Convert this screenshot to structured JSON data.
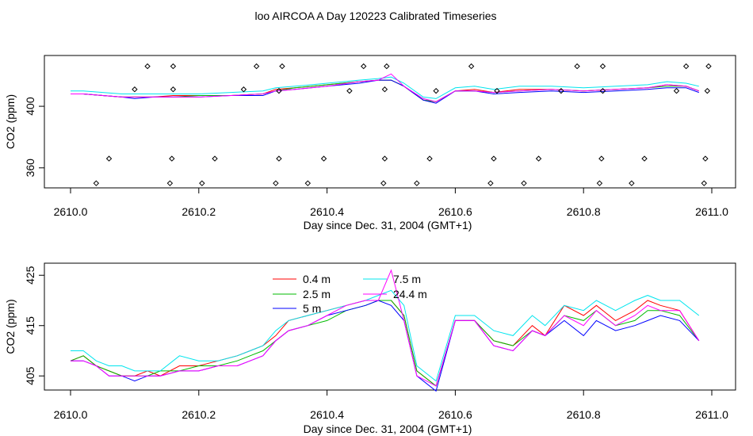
{
  "title": "loo AIRCOA A  Day 120223  Calibrated Timeseries",
  "colors": {
    "0.4 m": "#ff0000",
    "2.5 m": "#00bb00",
    "5 m": "#0000ff",
    "7.5 m": "#00e5ee",
    "24.4 m": "#ff00ff"
  },
  "chart_data": [
    {
      "type": "line",
      "xlabel": "Day since Dec. 31, 2004 (GMT+1)",
      "ylabel": "CO2 (ppm)",
      "xlim": [
        2610.0,
        2611.0
      ],
      "ylim": [
        347,
        433
      ],
      "xticks": [
        2610.0,
        2610.2,
        2610.4,
        2610.6,
        2610.8,
        2611.0
      ],
      "xtick_labels": [
        "2610.0",
        "2610.2",
        "2610.4",
        "2610.6",
        "2610.8",
        "2611.0"
      ],
      "yticks": [
        360,
        400
      ],
      "ytick_labels": [
        "360",
        "400"
      ],
      "legend": "none",
      "series": [
        {
          "key": "7.5 m",
          "x": [
            2610.0,
            2610.02,
            2610.05,
            2610.08,
            2610.1,
            2610.13,
            2610.16,
            2610.2,
            2610.25,
            2610.3,
            2610.32,
            2610.35,
            2610.4,
            2610.45,
            2610.48,
            2610.5,
            2610.52,
            2610.55,
            2610.57,
            2610.6,
            2610.63,
            2610.66,
            2610.7,
            2610.75,
            2610.8,
            2610.85,
            2610.9,
            2610.93,
            2610.96,
            2610.98
          ],
          "y": [
            410,
            410,
            409,
            408,
            408,
            408,
            408,
            408,
            409,
            410,
            412,
            413,
            415,
            417,
            418,
            419,
            415,
            406,
            405,
            412,
            413,
            411,
            413,
            413,
            412,
            413,
            414,
            416,
            415,
            413
          ]
        },
        {
          "key": "0.4 m",
          "x": [
            2610.0,
            2610.02,
            2610.05,
            2610.08,
            2610.1,
            2610.13,
            2610.16,
            2610.2,
            2610.25,
            2610.3,
            2610.32,
            2610.35,
            2610.4,
            2610.45,
            2610.48,
            2610.5,
            2610.52,
            2610.55,
            2610.57,
            2610.6,
            2610.63,
            2610.66,
            2610.7,
            2610.75,
            2610.8,
            2610.85,
            2610.9,
            2610.93,
            2610.96,
            2610.98
          ],
          "y": [
            408,
            408,
            407,
            406,
            406,
            406,
            407,
            407,
            407,
            408,
            411,
            412,
            414,
            416,
            417,
            417,
            413,
            404,
            403,
            410,
            411,
            409,
            411,
            411,
            410,
            411,
            412,
            414,
            413,
            410
          ]
        },
        {
          "key": "2.5 m",
          "x": [
            2610.0,
            2610.02,
            2610.05,
            2610.08,
            2610.1,
            2610.13,
            2610.16,
            2610.2,
            2610.25,
            2610.3,
            2610.32,
            2610.35,
            2610.4,
            2610.45,
            2610.48,
            2610.5,
            2610.52,
            2610.55,
            2610.57,
            2610.6,
            2610.63,
            2610.66,
            2610.7,
            2610.75,
            2610.8,
            2610.85,
            2610.9,
            2610.93,
            2610.96,
            2610.98
          ],
          "y": [
            408,
            408,
            407,
            406,
            406,
            406,
            406,
            407,
            407,
            408,
            410,
            412,
            414,
            416,
            417,
            417,
            413,
            404,
            403,
            410,
            410,
            409,
            410,
            411,
            410,
            411,
            412,
            413,
            413,
            410
          ]
        },
        {
          "key": "5 m",
          "x": [
            2610.0,
            2610.02,
            2610.05,
            2610.08,
            2610.1,
            2610.13,
            2610.16,
            2610.2,
            2610.25,
            2610.3,
            2610.32,
            2610.35,
            2610.4,
            2610.45,
            2610.48,
            2610.5,
            2610.52,
            2610.55,
            2610.57,
            2610.6,
            2610.63,
            2610.66,
            2610.7,
            2610.75,
            2610.8,
            2610.85,
            2610.9,
            2610.93,
            2610.96,
            2610.98
          ],
          "y": [
            408,
            408,
            407,
            406,
            405,
            406,
            406,
            406,
            407,
            407,
            410,
            411,
            413,
            415,
            417,
            417,
            413,
            404,
            402,
            410,
            410,
            408,
            409,
            410,
            409,
            410,
            411,
            412,
            412,
            409
          ]
        },
        {
          "key": "24.4 m",
          "x": [
            2610.0,
            2610.02,
            2610.05,
            2610.08,
            2610.1,
            2610.13,
            2610.16,
            2610.2,
            2610.25,
            2610.3,
            2610.32,
            2610.35,
            2610.4,
            2610.45,
            2610.48,
            2610.5,
            2610.52,
            2610.55,
            2610.57,
            2610.6,
            2610.63,
            2610.66,
            2610.7,
            2610.75,
            2610.8,
            2610.85,
            2610.9,
            2610.93,
            2610.96,
            2610.98
          ],
          "y": [
            408,
            408,
            407,
            406,
            406,
            406,
            406,
            406,
            407,
            408,
            410,
            411,
            413,
            416,
            417,
            421,
            413,
            405,
            403,
            410,
            410,
            409,
            410,
            411,
            410,
            411,
            412,
            414,
            413,
            410
          ]
        }
      ],
      "flag_points": {
        "x": [
          2610.04,
          2610.06,
          2610.1,
          2610.12,
          2610.155,
          2610.158,
          2610.16,
          2610.16,
          2610.205,
          2610.225,
          2610.27,
          2610.29,
          2610.32,
          2610.325,
          2610.325,
          2610.33,
          2610.37,
          2610.395,
          2610.435,
          2610.457,
          2610.488,
          2610.49,
          2610.49,
          2610.493,
          2610.54,
          2610.56,
          2610.57,
          2610.625,
          2610.655,
          2610.66,
          2610.665,
          2610.707,
          2610.73,
          2610.765,
          2610.79,
          2610.825,
          2610.828,
          2610.83,
          2610.83,
          2610.875,
          2610.895,
          2610.945,
          2610.96,
          2610.988,
          2610.99,
          2610.993,
          2610.995
        ],
        "y": [
          350,
          366,
          411,
          426,
          350,
          366,
          411,
          426,
          350,
          366,
          411,
          426,
          350,
          366,
          410,
          426,
          350,
          366,
          410,
          426,
          350,
          366,
          411,
          426,
          350,
          366,
          410,
          426,
          350,
          366,
          410,
          350,
          366,
          410,
          426,
          350,
          366,
          410,
          426,
          350,
          366,
          410,
          426,
          350,
          366,
          410,
          426
        ]
      }
    },
    {
      "type": "line",
      "xlabel": "Day since Dec. 31, 2004 (GMT+1)",
      "ylabel": "CO2 (ppm)",
      "xlim": [
        2610.0,
        2611.0
      ],
      "ylim": [
        402.2,
        427.4
      ],
      "xticks": [
        2610.0,
        2610.2,
        2610.4,
        2610.6,
        2610.8,
        2611.0
      ],
      "xtick_labels": [
        "2610.0",
        "2610.2",
        "2610.4",
        "2610.6",
        "2610.8",
        "2611.0"
      ],
      "yticks": [
        405,
        415,
        425
      ],
      "ytick_labels": [
        "405",
        "415",
        "425"
      ],
      "legend": "top-center",
      "series": [
        {
          "name": "0.4 m",
          "key": "0.4 m",
          "x": [
            2610.0,
            2610.02,
            2610.04,
            2610.06,
            2610.08,
            2610.1,
            2610.12,
            2610.14,
            2610.17,
            2610.2,
            2610.23,
            2610.26,
            2610.28,
            2610.3,
            2610.32,
            2610.34,
            2610.37,
            2610.4,
            2610.43,
            2610.46,
            2610.48,
            2610.5,
            2610.52,
            2610.54,
            2610.57,
            2610.6,
            2610.63,
            2610.66,
            2610.69,
            2610.72,
            2610.74,
            2610.77,
            2610.8,
            2610.82,
            2610.85,
            2610.88,
            2610.9,
            2610.92,
            2610.95,
            2610.98
          ],
          "y": [
            408,
            409,
            407,
            406,
            405,
            405,
            406,
            405,
            407,
            407,
            408,
            409,
            410,
            411,
            413,
            416,
            417,
            418,
            419,
            420,
            420,
            420,
            417,
            406,
            403,
            416,
            416,
            412,
            411,
            415,
            413,
            419,
            417,
            419,
            416,
            418,
            420,
            419,
            418,
            412
          ]
        },
        {
          "name": "2.5 m",
          "key": "2.5 m",
          "x": [
            2610.0,
            2610.02,
            2610.04,
            2610.06,
            2610.08,
            2610.1,
            2610.12,
            2610.14,
            2610.17,
            2610.2,
            2610.23,
            2610.26,
            2610.28,
            2610.3,
            2610.32,
            2610.34,
            2610.37,
            2610.4,
            2610.43,
            2610.46,
            2610.48,
            2610.5,
            2610.52,
            2610.54,
            2610.57,
            2610.6,
            2610.63,
            2610.66,
            2610.69,
            2610.72,
            2610.74,
            2610.77,
            2610.8,
            2610.82,
            2610.85,
            2610.88,
            2610.9,
            2610.92,
            2610.95,
            2610.98
          ],
          "y": [
            408,
            409,
            407,
            406,
            405,
            405,
            405,
            406,
            406,
            407,
            407,
            408,
            409,
            410,
            412,
            414,
            415,
            416,
            418,
            419,
            420,
            420,
            417,
            406,
            403,
            416,
            416,
            412,
            411,
            414,
            413,
            417,
            416,
            418,
            415,
            416,
            418,
            418,
            417,
            412
          ]
        },
        {
          "name": "5 m",
          "key": "5 m",
          "x": [
            2610.0,
            2610.02,
            2610.04,
            2610.06,
            2610.08,
            2610.1,
            2610.12,
            2610.14,
            2610.17,
            2610.2,
            2610.23,
            2610.26,
            2610.28,
            2610.3,
            2610.32,
            2610.34,
            2610.37,
            2610.4,
            2610.43,
            2610.46,
            2610.48,
            2610.5,
            2610.52,
            2610.54,
            2610.57,
            2610.6,
            2610.63,
            2610.66,
            2610.69,
            2610.72,
            2610.74,
            2610.77,
            2610.8,
            2610.82,
            2610.85,
            2610.88,
            2610.9,
            2610.92,
            2610.95,
            2610.98
          ],
          "y": [
            408,
            408,
            407,
            405,
            405,
            404,
            405,
            405,
            406,
            406,
            407,
            407,
            408,
            409,
            412,
            414,
            415,
            417,
            418,
            419,
            420,
            419,
            416,
            405,
            402,
            416,
            416,
            411,
            410,
            414,
            413,
            416,
            413,
            416,
            414,
            415,
            416,
            417,
            416,
            412
          ]
        },
        {
          "name": "7.5 m",
          "key": "7.5 m",
          "x": [
            2610.0,
            2610.02,
            2610.04,
            2610.06,
            2610.08,
            2610.1,
            2610.12,
            2610.14,
            2610.17,
            2610.2,
            2610.23,
            2610.26,
            2610.28,
            2610.3,
            2610.32,
            2610.34,
            2610.37,
            2610.4,
            2610.43,
            2610.46,
            2610.48,
            2610.5,
            2610.52,
            2610.54,
            2610.57,
            2610.6,
            2610.63,
            2610.66,
            2610.69,
            2610.72,
            2610.74,
            2610.77,
            2610.8,
            2610.82,
            2610.85,
            2610.88,
            2610.9,
            2610.92,
            2610.95,
            2610.98
          ],
          "y": [
            410,
            410,
            408,
            407,
            407,
            406,
            406,
            406,
            409,
            408,
            408,
            409,
            410,
            411,
            414,
            416,
            417,
            418,
            419,
            420,
            421,
            422,
            419,
            407,
            404,
            417,
            417,
            414,
            413,
            417,
            415,
            419,
            418,
            420,
            418,
            420,
            421,
            420,
            420,
            417
          ]
        },
        {
          "name": "24.4 m",
          "key": "24.4 m",
          "x": [
            2610.0,
            2610.02,
            2610.04,
            2610.06,
            2610.08,
            2610.1,
            2610.12,
            2610.14,
            2610.17,
            2610.2,
            2610.23,
            2610.26,
            2610.28,
            2610.3,
            2610.32,
            2610.34,
            2610.37,
            2610.4,
            2610.43,
            2610.46,
            2610.48,
            2610.5,
            2610.52,
            2610.54,
            2610.57,
            2610.6,
            2610.63,
            2610.66,
            2610.69,
            2610.72,
            2610.74,
            2610.77,
            2610.8,
            2610.82,
            2610.85,
            2610.88,
            2610.9,
            2610.92,
            2610.95,
            2610.98
          ],
          "y": [
            408,
            408,
            407,
            405,
            405,
            405,
            405,
            405,
            406,
            406,
            407,
            407,
            408,
            409,
            412,
            414,
            415,
            417,
            419,
            420,
            420,
            426,
            416,
            405,
            403,
            416,
            416,
            411,
            410,
            414,
            413,
            417,
            415,
            418,
            415,
            417,
            419,
            418,
            418,
            412
          ]
        }
      ]
    }
  ]
}
